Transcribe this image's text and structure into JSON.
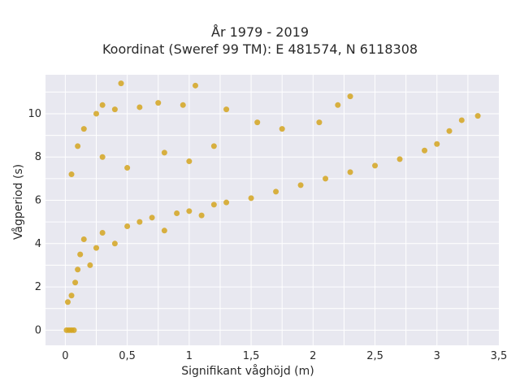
{
  "chart_data": {
    "type": "scatter",
    "title": "År 1979 - 2019",
    "subtitle": "Koordinat (Sweref 99 TM): E 481574, N 6118308",
    "xlabel": "Signifikant våghöjd (m)",
    "ylabel": "Vågperiod (s)",
    "xlim": [
      -0.16,
      3.5
    ],
    "ylim": [
      -0.7,
      11.8
    ],
    "x_ticks": [
      0,
      0.5,
      1,
      1.5,
      2,
      2.5,
      3,
      3.5
    ],
    "x_tick_labels": [
      "0",
      "0,5",
      "1",
      "1,5",
      "2",
      "2,5",
      "3",
      "3,5"
    ],
    "y_ticks": [
      0,
      2,
      4,
      6,
      8,
      10
    ],
    "y_tick_labels": [
      "0",
      "2",
      "4",
      "6",
      "8",
      "10"
    ],
    "grid": true,
    "legend": "none",
    "colors": {
      "marker": "#D4A420",
      "plot_bg": "#E8E8F0",
      "grid": "#ffffff"
    },
    "series": [
      {
        "values": [
          [
            0.01,
            0.0
          ],
          [
            0.03,
            0.0
          ],
          [
            0.05,
            0.0
          ],
          [
            0.07,
            0.0
          ],
          [
            0.02,
            1.3
          ],
          [
            0.05,
            1.6
          ],
          [
            0.08,
            2.2
          ],
          [
            0.1,
            2.8
          ],
          [
            0.12,
            3.5
          ],
          [
            0.15,
            4.2
          ],
          [
            0.2,
            3.0
          ],
          [
            0.25,
            3.8
          ],
          [
            0.3,
            4.5
          ],
          [
            0.4,
            4.0
          ],
          [
            0.5,
            4.8
          ],
          [
            0.6,
            5.0
          ],
          [
            0.7,
            5.2
          ],
          [
            0.8,
            4.6
          ],
          [
            0.9,
            5.4
          ],
          [
            1.0,
            5.5
          ],
          [
            1.1,
            5.3
          ],
          [
            1.2,
            5.8
          ],
          [
            1.3,
            5.9
          ],
          [
            1.5,
            6.1
          ],
          [
            1.7,
            6.4
          ],
          [
            1.9,
            6.7
          ],
          [
            2.1,
            7.0
          ],
          [
            2.3,
            7.3
          ],
          [
            2.5,
            7.6
          ],
          [
            2.7,
            7.9
          ],
          [
            2.9,
            8.3
          ],
          [
            3.0,
            8.6
          ],
          [
            3.1,
            9.2
          ],
          [
            3.2,
            9.7
          ],
          [
            3.33,
            9.9
          ],
          [
            0.05,
            7.2
          ],
          [
            0.1,
            8.5
          ],
          [
            0.15,
            9.3
          ],
          [
            0.25,
            10.0
          ],
          [
            0.3,
            10.4
          ],
          [
            0.4,
            10.2
          ],
          [
            0.45,
            11.4
          ],
          [
            0.6,
            10.3
          ],
          [
            0.75,
            10.5
          ],
          [
            0.95,
            10.4
          ],
          [
            1.05,
            11.3
          ],
          [
            1.3,
            10.2
          ],
          [
            1.55,
            9.6
          ],
          [
            1.75,
            9.3
          ],
          [
            2.05,
            9.6
          ],
          [
            2.2,
            10.4
          ],
          [
            2.3,
            10.8
          ],
          [
            0.3,
            8.0
          ],
          [
            0.5,
            7.5
          ],
          [
            0.8,
            8.2
          ],
          [
            1.0,
            7.8
          ],
          [
            1.2,
            8.5
          ]
        ]
      }
    ]
  }
}
